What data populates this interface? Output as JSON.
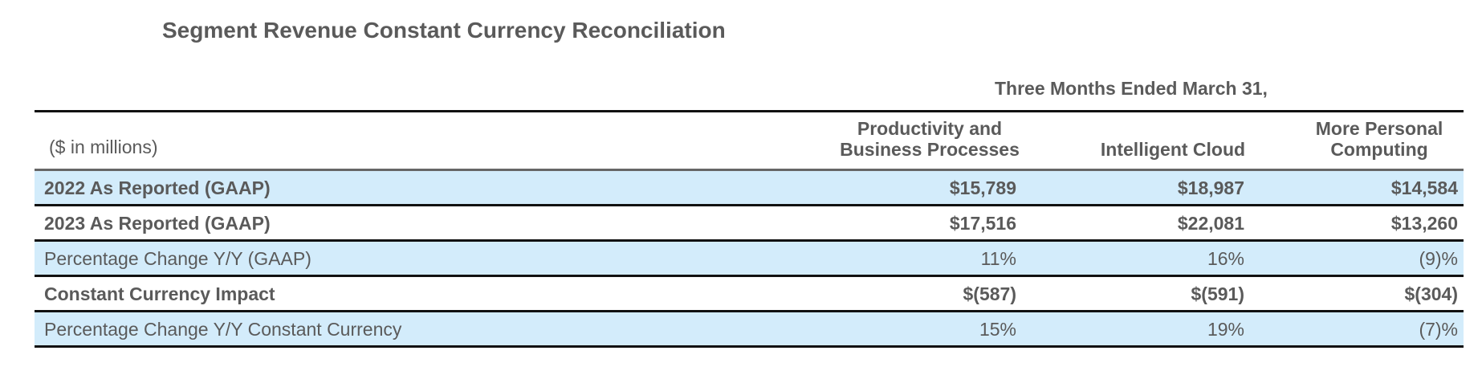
{
  "title": "Segment Revenue Constant Currency Reconciliation",
  "period_header": "Three Months Ended March 31,",
  "units_label": "($ in millions)",
  "columns": [
    "Productivity and Business Processes",
    "Intelligent Cloud",
    "More Personal Computing"
  ],
  "column_lines": [
    [
      "Productivity and",
      "Business Processes"
    ],
    [
      "Intelligent Cloud"
    ],
    [
      "More Personal",
      "Computing"
    ]
  ],
  "rows": [
    {
      "label": "2022 As Reported (GAAP)",
      "values": [
        "$15,789",
        "$18,987",
        "$14,584"
      ],
      "bold": true,
      "shaded": true
    },
    {
      "label": "2023 As Reported (GAAP)",
      "values": [
        "$17,516",
        "$22,081",
        "$13,260"
      ],
      "bold": true,
      "shaded": false
    },
    {
      "label": "Percentage Change Y/Y (GAAP)",
      "values": [
        "11%",
        "16%",
        "(9)%"
      ],
      "bold": false,
      "shaded": true
    },
    {
      "label": "Constant Currency Impact",
      "values": [
        "$(587)",
        "$(591)",
        "$(304)"
      ],
      "bold": true,
      "shaded": false
    },
    {
      "label": "Percentage Change Y/Y Constant Currency",
      "values": [
        "15%",
        "19%",
        "(7)%"
      ],
      "bold": false,
      "shaded": true
    }
  ],
  "colors": {
    "text": "#5a5a5a",
    "row_shade": "#d3ecfb",
    "rule": "#111111"
  }
}
